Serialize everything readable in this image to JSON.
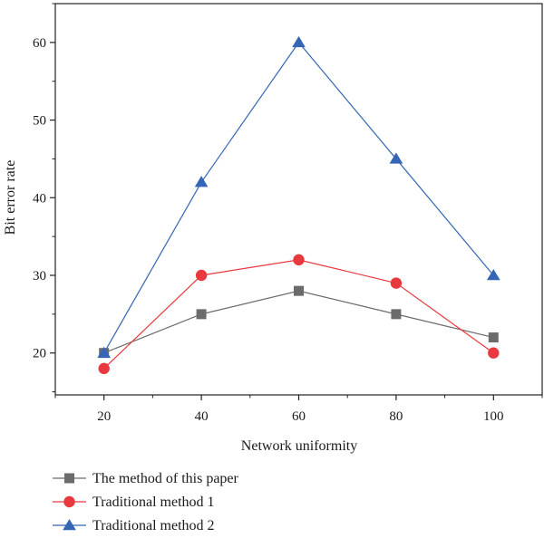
{
  "chart_data": {
    "type": "line",
    "xlabel": "Network uniformity",
    "ylabel": "Bit error rate",
    "x": [
      20,
      40,
      60,
      80,
      100
    ],
    "xlim": [
      10,
      110
    ],
    "ylim": [
      14.6,
      65
    ],
    "xticks": [
      20,
      40,
      60,
      80,
      100
    ],
    "yticks": [
      20,
      30,
      40,
      50,
      60
    ],
    "grid": false,
    "legend_position": "bottom-left, below plot",
    "series": [
      {
        "name": "The method of this paper",
        "values": [
          20,
          25,
          28,
          25,
          22
        ],
        "color": "#6b6b6b",
        "marker": "square"
      },
      {
        "name": "Traditional method 1",
        "values": [
          18,
          30,
          32,
          29,
          20
        ],
        "color": "#e8393f",
        "marker": "circle"
      },
      {
        "name": "Traditional method 2",
        "values": [
          20,
          42,
          60,
          45,
          30
        ],
        "color": "#3566b5",
        "marker": "triangle"
      }
    ]
  }
}
